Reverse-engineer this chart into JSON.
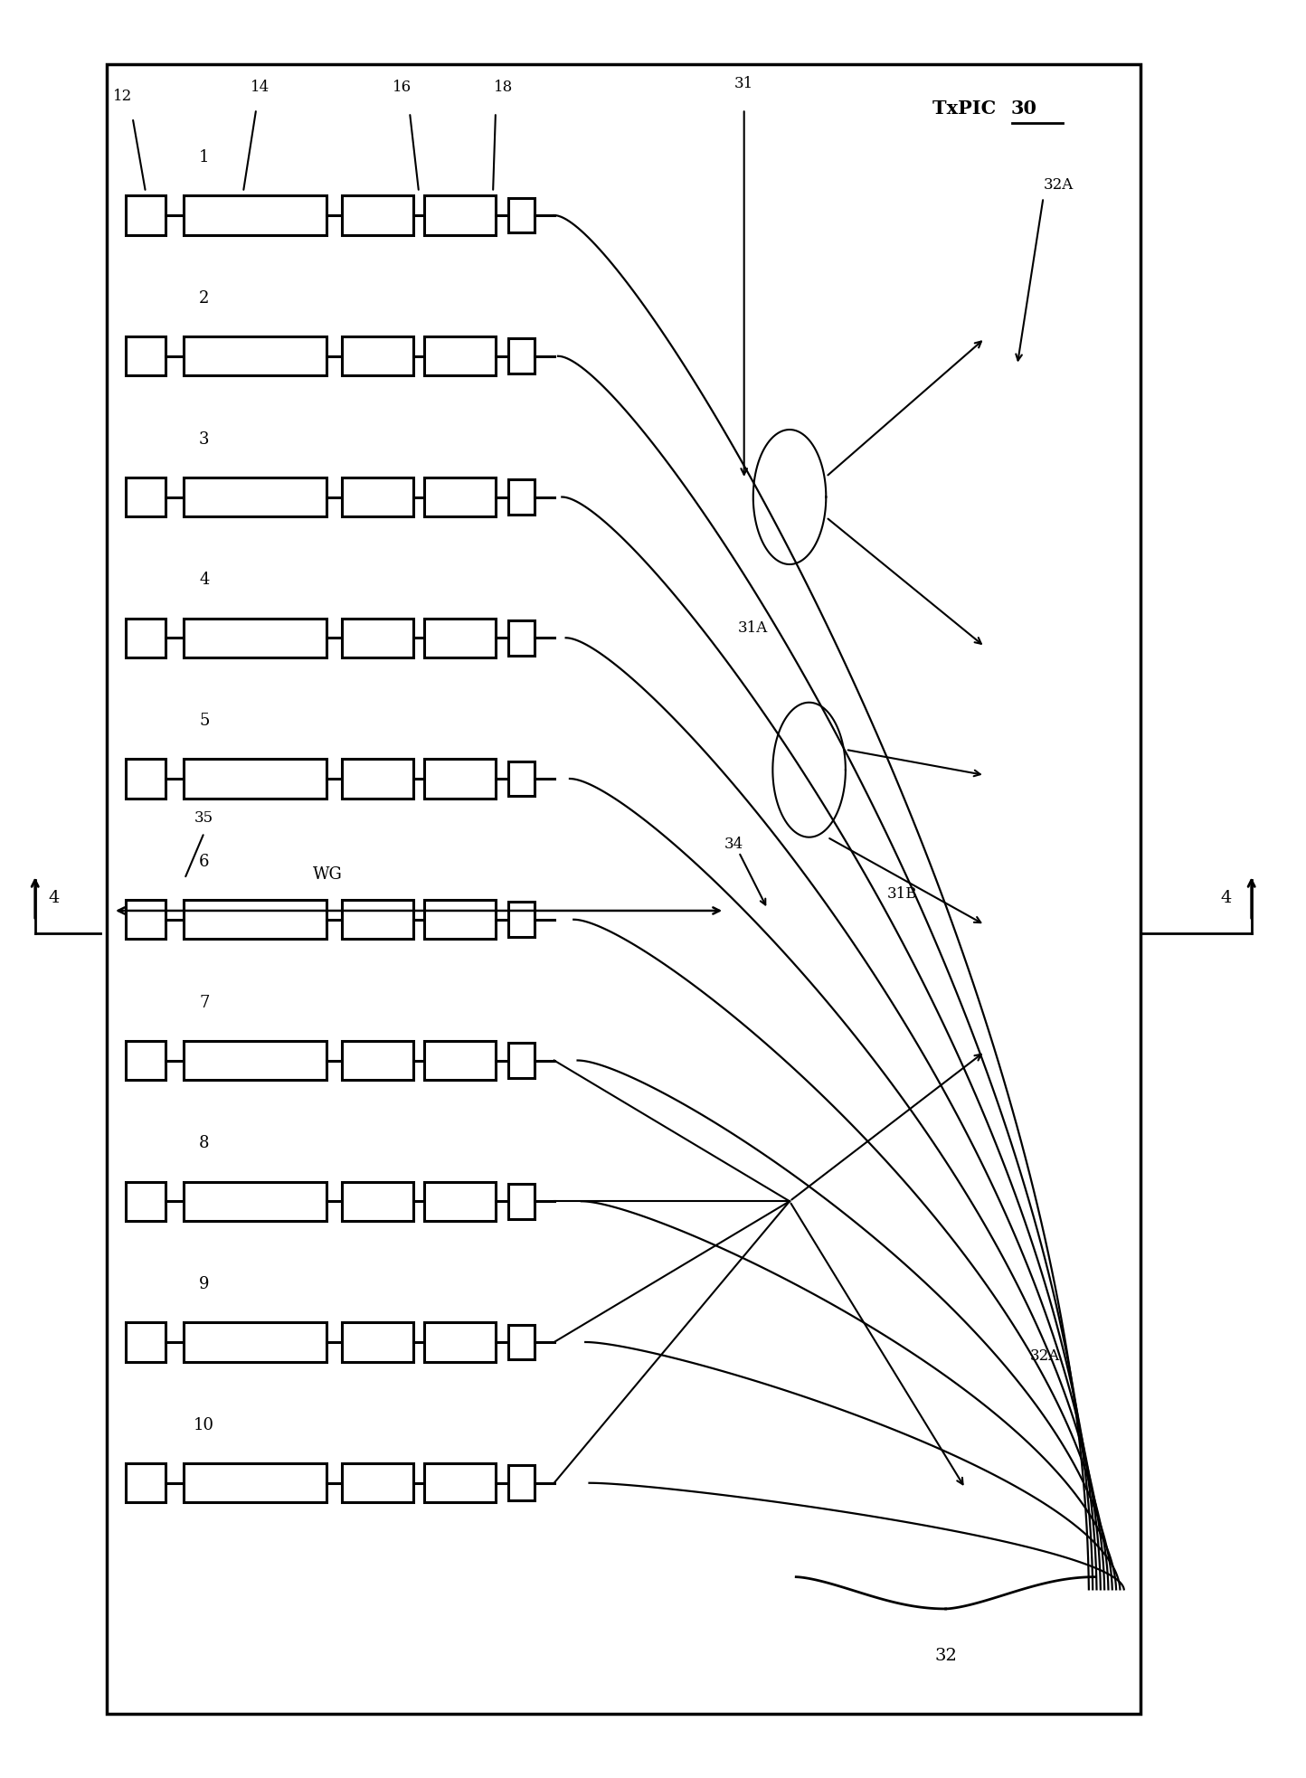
{
  "fig_width": 14.44,
  "fig_height": 19.66,
  "bg_color": "#ffffff",
  "channel_labels": [
    "1",
    "2",
    "3",
    "4",
    "5",
    "6",
    "7",
    "8",
    "9",
    "10"
  ],
  "label_12": "12",
  "label_14": "14",
  "label_16": "16",
  "label_18": "18",
  "label_31": "31",
  "label_31A": "31A",
  "label_31B": "31B",
  "label_32": "32",
  "label_32A": "32A",
  "label_34": "34",
  "label_35": "35",
  "label_WG": "WG",
  "label_4": "4",
  "label_TxPIC": "TxPIC",
  "label_30": "30"
}
